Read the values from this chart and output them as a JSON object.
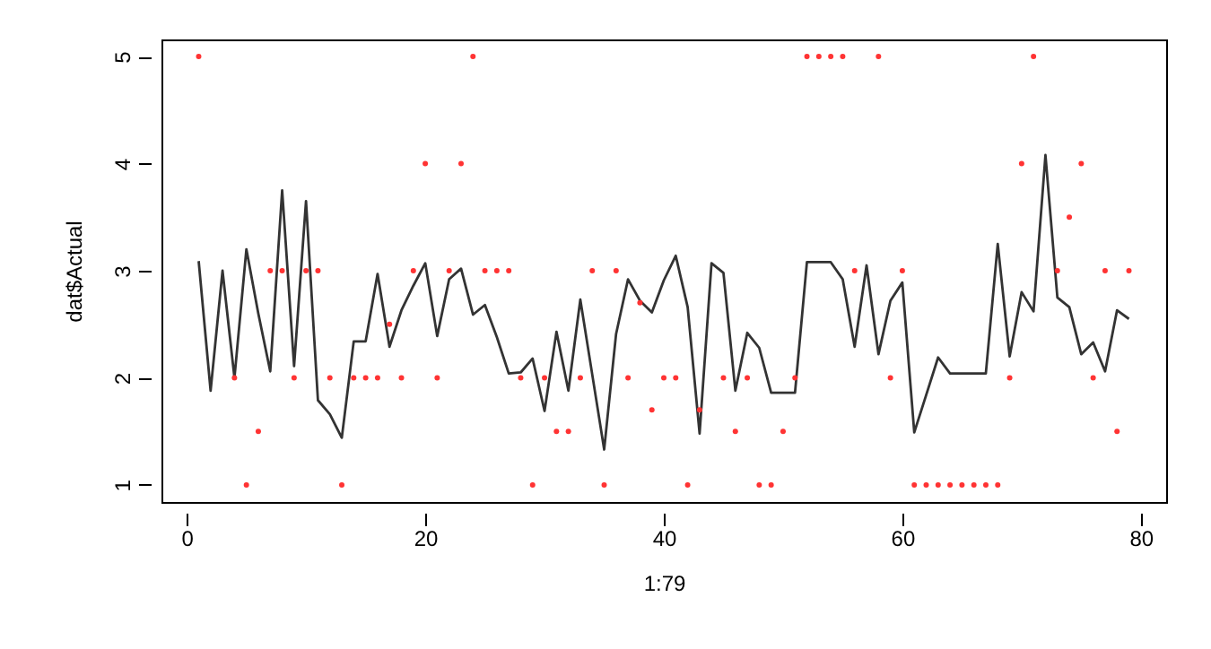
{
  "chart_data": {
    "type": "line",
    "xlabel": "1:79",
    "ylabel": "dat$Actual",
    "x": [
      1,
      2,
      3,
      4,
      5,
      6,
      7,
      8,
      9,
      10,
      11,
      12,
      13,
      14,
      15,
      16,
      17,
      18,
      19,
      20,
      21,
      22,
      23,
      24,
      25,
      26,
      27,
      28,
      29,
      30,
      31,
      32,
      33,
      34,
      35,
      36,
      37,
      38,
      39,
      40,
      41,
      42,
      43,
      44,
      45,
      46,
      47,
      48,
      49,
      50,
      51,
      52,
      53,
      54,
      55,
      56,
      57,
      58,
      59,
      60,
      61,
      62,
      63,
      64,
      65,
      66,
      67,
      68,
      69,
      70,
      71,
      72,
      73,
      74,
      75,
      76,
      77,
      78,
      79
    ],
    "series": [
      {
        "type": "line",
        "color": "#333333",
        "values": [
          3.09,
          1.88,
          3.0,
          2.0,
          3.2,
          2.6,
          2.06,
          3.75,
          2.11,
          3.65,
          1.79,
          1.66,
          1.44,
          2.34,
          2.34,
          2.97,
          2.29,
          2.63,
          2.86,
          3.07,
          2.39,
          2.92,
          3.02,
          2.59,
          2.68,
          2.38,
          2.04,
          2.05,
          2.18,
          1.69,
          2.43,
          1.88,
          2.73,
          2.03,
          1.33,
          2.41,
          2.92,
          2.72,
          2.61,
          2.91,
          3.14,
          2.66,
          1.48,
          3.07,
          2.98,
          1.88,
          2.42,
          2.28,
          1.86,
          1.86,
          1.86,
          3.08,
          3.08,
          3.08,
          2.92,
          2.29,
          3.05,
          2.22,
          2.72,
          2.89,
          1.49,
          1.84,
          2.19,
          2.04,
          2.04,
          2.04,
          2.04,
          3.25,
          2.2,
          2.8,
          2.62,
          4.08,
          2.75,
          2.66,
          2.22,
          2.33,
          2.06,
          2.63,
          2.55
        ]
      },
      {
        "type": "scatter",
        "color": "#ff3333",
        "marker": "circle",
        "values": [
          5,
          null,
          null,
          2,
          1,
          1.5,
          3,
          3,
          2,
          3,
          3,
          2,
          1,
          2,
          2,
          2,
          2.5,
          2,
          3,
          4,
          2,
          3,
          4,
          5,
          3,
          3,
          3,
          2,
          1,
          2,
          1.5,
          1.5,
          2,
          3,
          1,
          3,
          2,
          2.7,
          1.7,
          2,
          2,
          1,
          1.7,
          null,
          2,
          1.5,
          2,
          1,
          1,
          1.5,
          2,
          5,
          5,
          5,
          5,
          3,
          null,
          5,
          2,
          3,
          1,
          1,
          1,
          1,
          1,
          1,
          1,
          1,
          2,
          4,
          5,
          null,
          3,
          3.5,
          4,
          2,
          3,
          1.5,
          3
        ]
      }
    ],
    "xlim": [
      -2.12,
      82.12
    ],
    "ylim": [
      0.84,
      5.16
    ],
    "xticks": [
      0,
      20,
      40,
      60,
      80
    ],
    "yticks": [
      1,
      2,
      3,
      4,
      5
    ],
    "grid": false
  }
}
